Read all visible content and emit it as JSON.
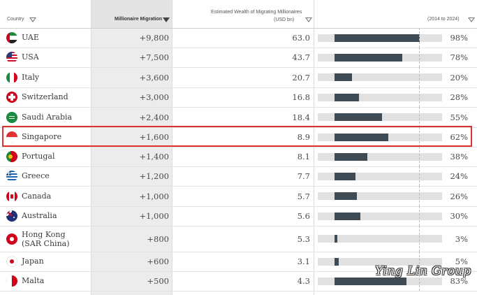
{
  "header": {
    "country_label": "Country",
    "migration_label": "Millionaire Migration",
    "wealth_label_line1": "Estimated Wealth of Migrating Millionaires",
    "wealth_label_line2": "(USD bn)",
    "growth_label": "(2014 to 2024)"
  },
  "rows": [
    {
      "country": "UAE",
      "migration": "+9,800",
      "wealth": "63.0",
      "growth": "98%",
      "growth_value": 98
    },
    {
      "country": "USA",
      "migration": "+7,500",
      "wealth": "43.7",
      "growth": "78%",
      "growth_value": 78
    },
    {
      "country": "Italy",
      "migration": "+3,600",
      "wealth": "20.7",
      "growth": "20%",
      "growth_value": 20
    },
    {
      "country": "Switzerland",
      "migration": "+3,000",
      "wealth": "16.8",
      "growth": "28%",
      "growth_value": 28
    },
    {
      "country": "Saudi Arabia",
      "migration": "+2,400",
      "wealth": "18.4",
      "growth": "55%",
      "growth_value": 55
    },
    {
      "country": "Singapore",
      "migration": "+1,600",
      "wealth": "8.9",
      "growth": "62%",
      "growth_value": 62
    },
    {
      "country": "Portugal",
      "migration": "+1,400",
      "wealth": "8.1",
      "growth": "38%",
      "growth_value": 38
    },
    {
      "country": "Greece",
      "migration": "+1,200",
      "wealth": "7.7",
      "growth": "24%",
      "growth_value": 24
    },
    {
      "country": "Canada",
      "migration": "+1,000",
      "wealth": "5.7",
      "growth": "26%",
      "growth_value": 26
    },
    {
      "country": "Australia",
      "migration": "+1,000",
      "wealth": "5.6",
      "growth": "30%",
      "growth_value": 30
    },
    {
      "country": "Hong Kong (SAR China)",
      "migration": "+800",
      "wealth": "5.3",
      "growth": "3%",
      "growth_value": 3
    },
    {
      "country": "Japan",
      "migration": "+600",
      "wealth": "3.1",
      "growth": "5%",
      "growth_value": 5
    },
    {
      "country": "Malta",
      "migration": "+500",
      "wealth": "4.3",
      "growth": "83%",
      "growth_value": 83
    }
  ],
  "highlighted_country": "Singapore",
  "watermark": "Ying Lin Group",
  "colors": {
    "bar": "#3e4a54",
    "track": "#e1e1e1",
    "highlight": "#e03131",
    "sorted_column": "#ececec"
  }
}
